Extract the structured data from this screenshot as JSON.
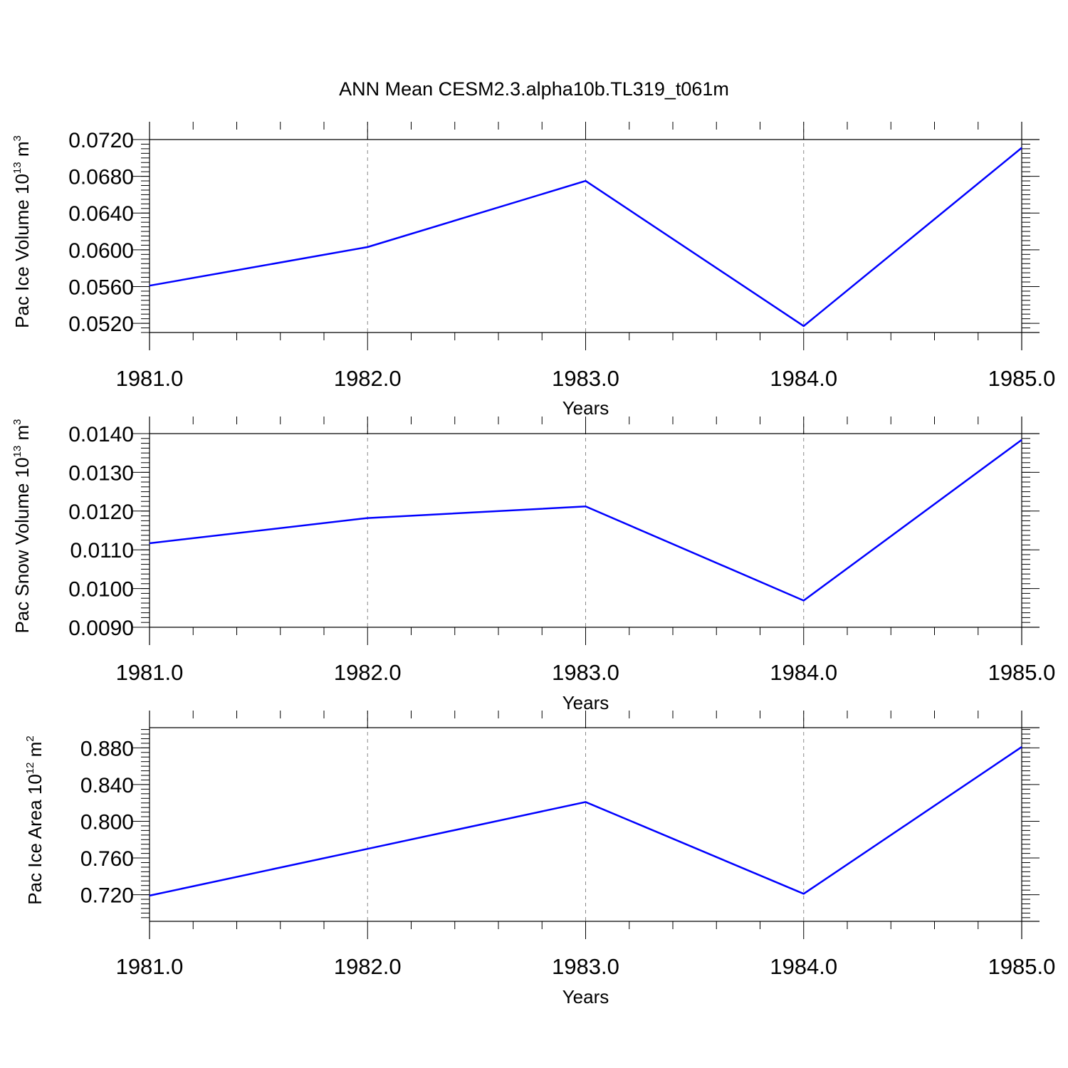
{
  "figure_title": "ANN Mean CESM2.3.alpha10b.TL319_t061m",
  "colors": {
    "line": "#0000ff",
    "axis": "#000000",
    "grid": "#888888"
  },
  "chart_data": [
    {
      "type": "line",
      "xlabel": "Years",
      "ylabel": {
        "text": "Pac Ice Volume 10",
        "exp": "13",
        "unit": " m",
        "unit_exp": "3"
      },
      "xlim": [
        1981,
        1985
      ],
      "ylim": [
        0.051,
        0.072
      ],
      "x_ticks": [
        1981,
        1982,
        1983,
        1984,
        1985
      ],
      "x_tick_labels": [
        "1981.0",
        "1982.0",
        "1983.0",
        "1984.0",
        "1985.0"
      ],
      "y_ticks": [
        0.052,
        0.056,
        0.06,
        0.064,
        0.068,
        0.072
      ],
      "y_tick_labels": [
        "0.0520",
        "0.0560",
        "0.0600",
        "0.0640",
        "0.0680",
        "0.0720"
      ],
      "grid": "vertical dashed at major x ticks",
      "x": [
        1981,
        1982,
        1983,
        1984,
        1985
      ],
      "values": [
        0.0561,
        0.0603,
        0.0675,
        0.0517,
        0.0711
      ]
    },
    {
      "type": "line",
      "xlabel": "Years",
      "ylabel": {
        "text": "Pac Snow Volume 10",
        "exp": "13",
        "unit": " m",
        "unit_exp": "3"
      },
      "xlim": [
        1981,
        1985
      ],
      "ylim": [
        0.009,
        0.014
      ],
      "x_ticks": [
        1981,
        1982,
        1983,
        1984,
        1985
      ],
      "x_tick_labels": [
        "1981.0",
        "1982.0",
        "1983.0",
        "1984.0",
        "1985.0"
      ],
      "y_ticks": [
        0.009,
        0.01,
        0.011,
        0.012,
        0.013,
        0.014
      ],
      "y_tick_labels": [
        "0.0090",
        "0.0100",
        "0.0110",
        "0.0120",
        "0.0130",
        "0.0140"
      ],
      "grid": "vertical dashed at major x ticks",
      "x": [
        1981,
        1982,
        1983,
        1984,
        1985
      ],
      "values": [
        0.01117,
        0.01182,
        0.01212,
        0.00969,
        0.01384
      ]
    },
    {
      "type": "line",
      "xlabel": "Years",
      "ylabel": {
        "text": "Pac Ice Area 10",
        "exp": "12",
        "unit": " m",
        "unit_exp": "2"
      },
      "xlim": [
        1981,
        1985
      ],
      "ylim": [
        0.691,
        0.902
      ],
      "x_ticks": [
        1981,
        1982,
        1983,
        1984,
        1985
      ],
      "x_tick_labels": [
        "1981.0",
        "1982.0",
        "1983.0",
        "1984.0",
        "1985.0"
      ],
      "y_ticks": [
        0.72,
        0.76,
        0.8,
        0.84,
        0.88
      ],
      "y_tick_labels": [
        "0.720",
        "0.760",
        "0.800",
        "0.840",
        "0.880"
      ],
      "grid": "vertical dashed at major x ticks",
      "x": [
        1981,
        1982,
        1983,
        1984,
        1985
      ],
      "values": [
        0.719,
        0.77,
        0.821,
        0.721,
        0.881
      ]
    }
  ]
}
